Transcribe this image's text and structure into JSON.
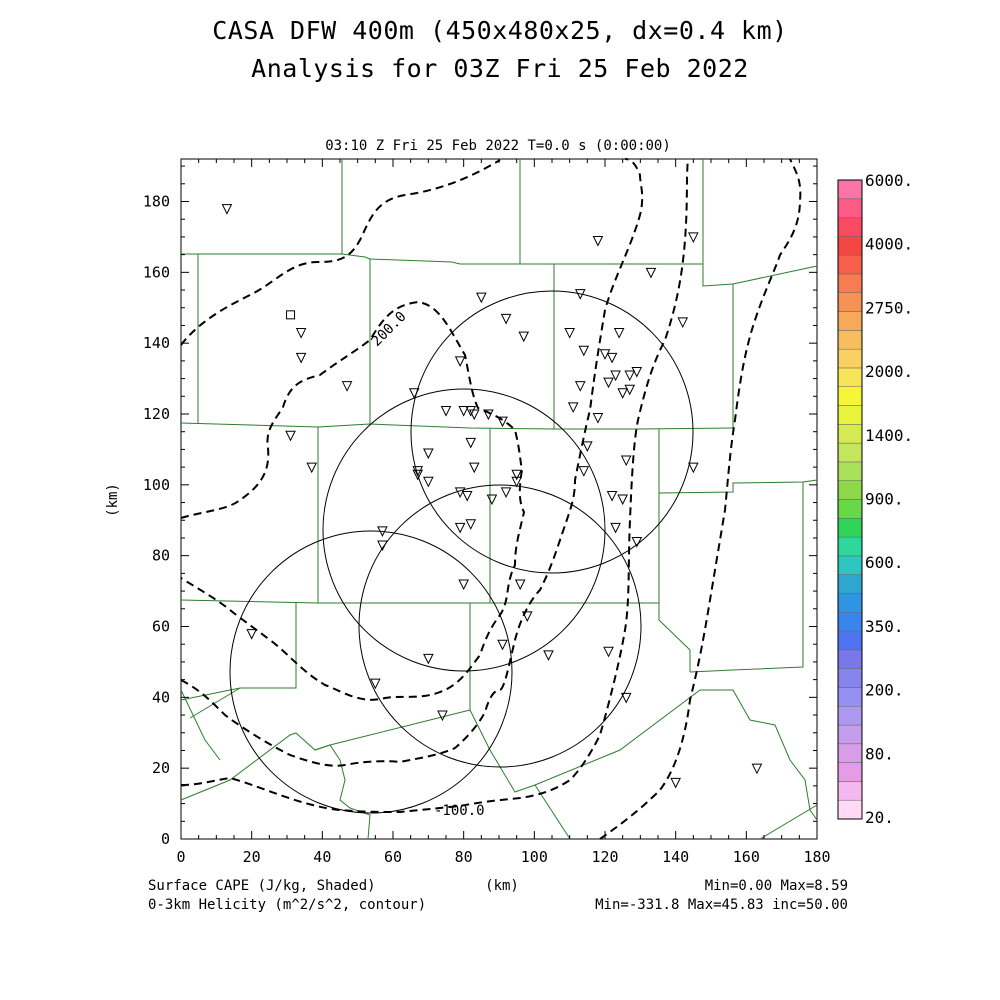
{
  "title": "CASA DFW 400m (450x480x25, dx=0.4 km)",
  "subtitle": "Analysis for 03Z Fri 25 Feb 2022",
  "time_label": "03:10 Z Fri 25 Feb 2022    T=0.0 s (0:00:00)",
  "x_axis": {
    "label": "(km)",
    "min": 0,
    "max": 180,
    "ticks": [
      0,
      20,
      40,
      60,
      80,
      100,
      120,
      140,
      160,
      180
    ]
  },
  "y_axis": {
    "label": "(km)",
    "min": 0,
    "max": 192,
    "ticks": [
      0,
      20,
      40,
      60,
      80,
      100,
      120,
      140,
      160,
      180
    ]
  },
  "colorbar": {
    "labels": [
      "20.",
      "80.",
      "200.",
      "350.",
      "600.",
      "900.",
      "1400.",
      "2000.",
      "2750.",
      "4000.",
      "6000."
    ],
    "colors": [
      "#ffd9f5",
      "#f3b8ee",
      "#e79be5",
      "#d79de6",
      "#c59ded",
      "#ad9af0",
      "#9591f2",
      "#8784ee",
      "#7878ea",
      "#4f74f0",
      "#3a84ee",
      "#2f94e2",
      "#2fa6d0",
      "#2ec7c0",
      "#2ed79a",
      "#30d458",
      "#6ad746",
      "#8ed84a",
      "#abe05a",
      "#c3e65e",
      "#d4ea50",
      "#e6f43c",
      "#f5f53a",
      "#f8e458",
      "#f9d061",
      "#f8be5e",
      "#f6a95a",
      "#f79256",
      "#f77c51",
      "#f6604a",
      "#f44642",
      "#f84b62",
      "#fb5b84",
      "#fb74a8"
    ]
  },
  "footer": {
    "left1": "Surface CAPE (J/kg, Shaded)",
    "left2": "0-3km Helicity (m^2/s^2, contour)",
    "center": "(km)",
    "right1": "Min=0.00 Max=8.59",
    "right2": "Min=-331.8 Max=45.83 inc=50.00"
  },
  "contour_labels": [
    "200.0",
    "-100.0"
  ],
  "map_features": {
    "radar_rings": [
      {
        "center_km": [
          105,
          116
        ],
        "radius_km": 40
      },
      {
        "center_km": [
          80,
          88
        ],
        "radius_km": 40
      },
      {
        "center_km": [
          98,
          61
        ],
        "radius_km": 40
      },
      {
        "center_km": [
          48,
          48
        ],
        "radius_km": 40
      }
    ],
    "station_symbol": "triangle-down",
    "square_symbol": "square"
  },
  "stations_km": [
    [
      13,
      178
    ],
    [
      34,
      143
    ],
    [
      34,
      136
    ],
    [
      31,
      114
    ],
    [
      37,
      105
    ],
    [
      47,
      128
    ],
    [
      66,
      126
    ],
    [
      70,
      109
    ],
    [
      67,
      104
    ],
    [
      67,
      103
    ],
    [
      70,
      101
    ],
    [
      57,
      87
    ],
    [
      57,
      83
    ],
    [
      75,
      121
    ],
    [
      80,
      121
    ],
    [
      82,
      121
    ],
    [
      79,
      135
    ],
    [
      83,
      120
    ],
    [
      87,
      120
    ],
    [
      91,
      118
    ],
    [
      82,
      112
    ],
    [
      83,
      105
    ],
    [
      79,
      98
    ],
    [
      81,
      97
    ],
    [
      88,
      96
    ],
    [
      92,
      98
    ],
    [
      95,
      101
    ],
    [
      95,
      103
    ],
    [
      79,
      88
    ],
    [
      82,
      89
    ],
    [
      85,
      153
    ],
    [
      92,
      147
    ],
    [
      97,
      142
    ],
    [
      110,
      143
    ],
    [
      114,
      138
    ],
    [
      120,
      137
    ],
    [
      122,
      136
    ],
    [
      123,
      131
    ],
    [
      121,
      129
    ],
    [
      125,
      126
    ],
    [
      127,
      127
    ],
    [
      127,
      131
    ],
    [
      129,
      132
    ],
    [
      113,
      128
    ],
    [
      118,
      119
    ],
    [
      115,
      111
    ],
    [
      114,
      104
    ],
    [
      122,
      97
    ],
    [
      125,
      96
    ],
    [
      123,
      88
    ],
    [
      129,
      84
    ],
    [
      111,
      122
    ],
    [
      126,
      107
    ],
    [
      145,
      105
    ],
    [
      118,
      169
    ],
    [
      133,
      160
    ],
    [
      145,
      170
    ],
    [
      142,
      146
    ],
    [
      124,
      143
    ],
    [
      113,
      154
    ],
    [
      80,
      72
    ],
    [
      96,
      72
    ],
    [
      98,
      63
    ],
    [
      20,
      58
    ],
    [
      70,
      51
    ],
    [
      91,
      55
    ],
    [
      104,
      52
    ],
    [
      121,
      53
    ],
    [
      126,
      40
    ],
    [
      55,
      44
    ],
    [
      74,
      35
    ],
    [
      140,
      16
    ],
    [
      163,
      20
    ]
  ],
  "square_km": [
    31,
    148
  ]
}
